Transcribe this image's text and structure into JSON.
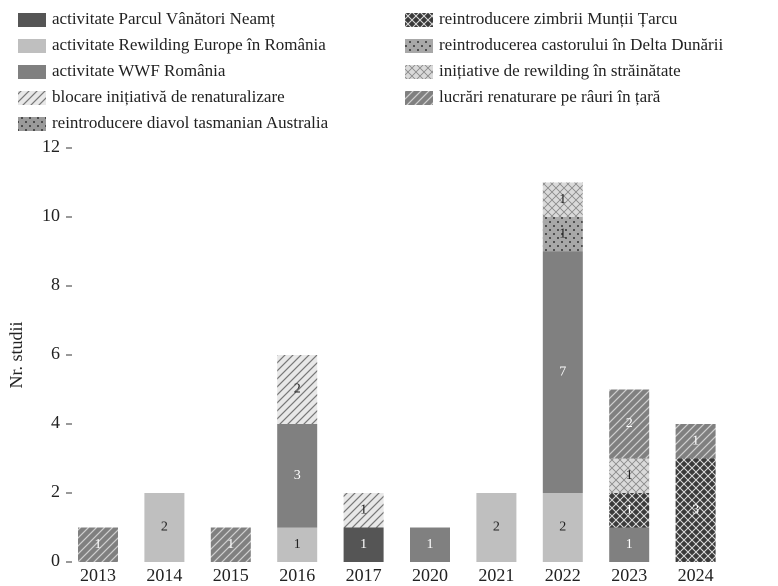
{
  "chart_data": {
    "type": "bar",
    "stacked": true,
    "y_label": "Nr. studii",
    "categories": [
      "2013",
      "2014",
      "2015",
      "2016",
      "2017",
      "2020",
      "2021",
      "2022",
      "2023",
      "2024"
    ],
    "ylim": [
      0,
      12
    ],
    "yticks": [
      0,
      2,
      4,
      6,
      8,
      10,
      12
    ],
    "series": [
      {
        "name": "activitate Parcul Vânători Neamț",
        "color": "#555555",
        "pattern": "solid",
        "label_color": "#ffffff",
        "values": [
          null,
          null,
          null,
          null,
          1,
          null,
          null,
          null,
          null,
          null
        ]
      },
      {
        "name": "activitate Rewilding Europe în România",
        "color": "#bfbfbf",
        "pattern": "solid",
        "label_color": "#222222",
        "values": [
          null,
          2,
          null,
          1,
          null,
          null,
          2,
          2,
          null,
          null
        ]
      },
      {
        "name": "activitate WWF România",
        "color": "#808080",
        "pattern": "solid",
        "label_color": "#ffffff",
        "values": [
          null,
          null,
          null,
          3,
          null,
          1,
          null,
          7,
          1,
          null
        ]
      },
      {
        "name": "blocare inițiativă de renaturalizare",
        "color": "#e8e8e8",
        "pattern": "diagonal",
        "label_color": "#222222",
        "values": [
          null,
          null,
          null,
          2,
          1,
          null,
          null,
          null,
          null,
          null
        ]
      },
      {
        "name": "reintroducere diavol tasmanian Australia",
        "color": "#9a9a9a",
        "pattern": "dots",
        "label_color": "#222222",
        "values": [
          null,
          null,
          null,
          null,
          null,
          null,
          null,
          null,
          null,
          null
        ]
      },
      {
        "name": "reintroducere zimbrii Munții Țarcu",
        "color": "#3a3a3a",
        "pattern": "cross",
        "label_color": "#ffffff",
        "values": [
          null,
          null,
          null,
          null,
          null,
          null,
          null,
          null,
          1,
          3
        ]
      },
      {
        "name": "reintroducerea castorului în Delta Dunării",
        "color": "#a8a8a8",
        "pattern": "dots",
        "label_color": "#222222",
        "values": [
          null,
          null,
          null,
          null,
          null,
          null,
          null,
          1,
          null,
          null
        ]
      },
      {
        "name": "inițiative de rewilding în străinătate",
        "color": "#dadada",
        "pattern": "x",
        "label_color": "#222222",
        "values": [
          null,
          null,
          null,
          null,
          null,
          null,
          null,
          1,
          1,
          null
        ]
      },
      {
        "name": "lucrări renaturare pe râuri în țară",
        "color": "#808080",
        "pattern": "diagonal",
        "label_color": "#ffffff",
        "values": [
          1,
          null,
          1,
          null,
          null,
          null,
          null,
          null,
          2,
          1
        ]
      }
    ]
  }
}
